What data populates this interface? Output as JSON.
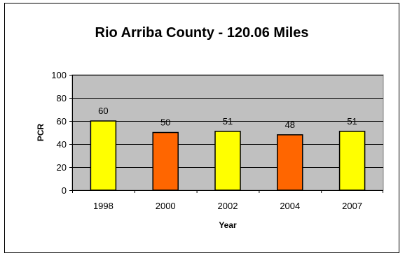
{
  "chart_data": {
    "type": "bar",
    "title": "Rio Arriba County - 120.06 Miles",
    "xlabel": "Year",
    "ylabel": "PCR",
    "categories": [
      "1998",
      "2000",
      "2002",
      "2004",
      "2007"
    ],
    "values": [
      60,
      50,
      51,
      48,
      51
    ],
    "data_labels": [
      "60",
      "50",
      "51",
      "48",
      "51"
    ],
    "bar_colors": [
      "#FFFF00",
      "#FF6600",
      "#FFFF00",
      "#FF6600",
      "#FFFF00"
    ],
    "ylim": [
      0,
      100
    ],
    "yticks": [
      0,
      20,
      40,
      60,
      80,
      100
    ],
    "ytick_labels": [
      "0",
      "20",
      "40",
      "60",
      "80",
      "100"
    ],
    "grid": true,
    "plot_background": "#C0C0C0",
    "legend": "none"
  }
}
